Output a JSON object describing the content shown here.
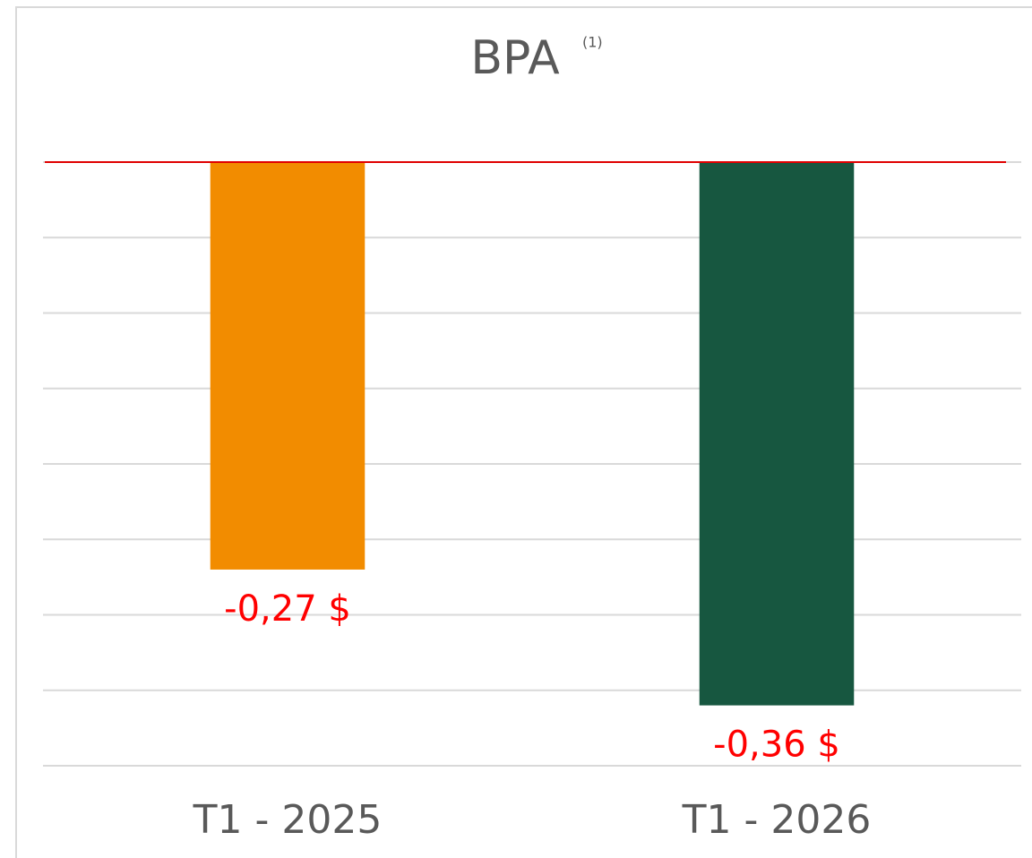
{
  "chart_data": {
    "type": "bar",
    "title": "BPA",
    "title_superscript": "(1)",
    "categories": [
      "T1 - 2025",
      "T1 - 2026"
    ],
    "values": [
      -0.27,
      -0.36
    ],
    "value_labels": [
      "-0,27 $",
      "-0,36 $"
    ],
    "colors": [
      "#f28c00",
      "#175740"
    ],
    "value_label_color": "#ff0000",
    "ylim": [
      -0.4,
      0
    ],
    "yticks": [
      -0.4,
      -0.35,
      -0.3,
      -0.25,
      -0.2,
      -0.15,
      -0.1,
      -0.05,
      0
    ],
    "grid": true,
    "zero_line_color": "#e00000"
  }
}
